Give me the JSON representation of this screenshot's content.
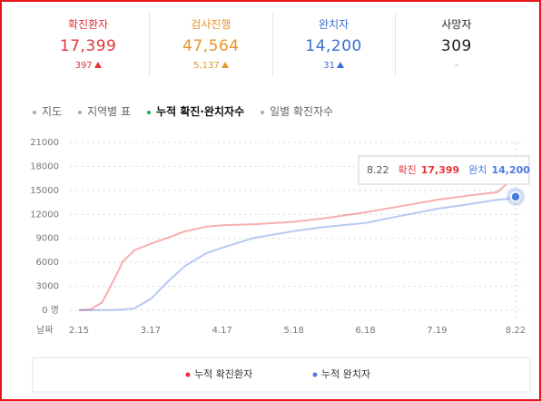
{
  "stats": [
    {
      "label": "확진환자",
      "value": "17,399",
      "change": "397"
    },
    {
      "label": "검사진행",
      "value": "47,564",
      "change": "5,137"
    },
    {
      "label": "완치자",
      "value": "14,200",
      "change": "31"
    },
    {
      "label": "사망자",
      "value": "309",
      "change": "-"
    }
  ],
  "tabs": [
    "지도",
    "지역별 표",
    "누적 확진·완치자수",
    "일별 확진자수"
  ],
  "chart_data": {
    "type": "line",
    "x_label": "날짜",
    "x": [
      "2.15",
      "2.20",
      "2.25",
      "3.1",
      "3.5",
      "3.10",
      "3.17",
      "3.25",
      "4.1",
      "4.10",
      "4.17",
      "5.1",
      "5.18",
      "6.1",
      "6.18",
      "7.1",
      "7.19",
      "8.1",
      "8.14",
      "8.18",
      "8.22"
    ],
    "xticks": [
      "2.15",
      "3.17",
      "4.17",
      "5.18",
      "6.18",
      "7.19",
      "8.22"
    ],
    "series": [
      {
        "name": "누적 확진환자",
        "color": "#e8343a",
        "values": [
          28,
          104,
          977,
          3736,
          6088,
          7513,
          8320,
          9137,
          9887,
          10450,
          10635,
          10774,
          11065,
          11541,
          12257,
          12904,
          13816,
          14336,
          14770,
          15761,
          17399
        ]
      },
      {
        "name": "누적 완치자",
        "color": "#4a7be0",
        "values": [
          16,
          16,
          22,
          30,
          88,
          247,
          1401,
          3730,
          5567,
          7117,
          7829,
          9072,
          9904,
          10446,
          10931,
          11684,
          12704,
          13233,
          13817,
          13901,
          14200
        ]
      }
    ],
    "ylim": [
      0,
      21000
    ],
    "yticks": [
      {
        "value": 0,
        "label": "0 명"
      },
      3000,
      6000,
      9000,
      12000,
      15000,
      18000,
      21000
    ],
    "grid": true,
    "tooltip": {
      "date": "8.22",
      "items": [
        {
          "label": "확진",
          "value": "17,399"
        },
        {
          "label": "완치",
          "value": "14,200"
        }
      ]
    }
  }
}
